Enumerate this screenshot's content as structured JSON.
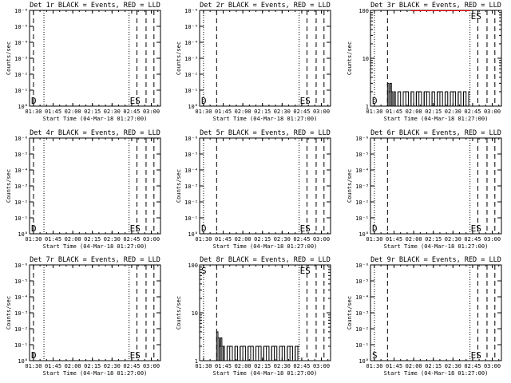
{
  "figure": {
    "background": "#ffffff",
    "ink_color": "#000000",
    "lld_color": "#ff0000"
  },
  "chart_data": [
    {
      "type": "line",
      "title": "Det 1r BLACK = Events, RED = LLD",
      "xlabel": "Start Time (04-Mar-18 01:27:00)",
      "ylabel": "Counts/sec",
      "x_ticks": [
        "01:30",
        "01:45",
        "02:00",
        "02:15",
        "02:30",
        "02:45",
        "03:00"
      ],
      "xlim": [
        "01:27",
        "03:07"
      ],
      "y_scale": "log",
      "y_ticks": [
        "10°",
        "10⁻¹",
        "10⁻²",
        "10⁻³",
        "10⁻⁴",
        "10⁻⁵",
        "10⁻⁶"
      ],
      "y_tick_values": [
        1,
        0.1,
        0.01,
        0.001,
        0.0001,
        1e-05,
        1e-06
      ],
      "ylim": [
        1,
        1e-06
      ],
      "ylim_mode": "inverted-empty",
      "marker_left": "D",
      "marker_right": "ES",
      "dotted_lines": [
        "01:38",
        "02:43"
      ],
      "dashed_lines": [
        "01:30",
        "02:49",
        "02:56",
        "03:02"
      ],
      "series": []
    },
    {
      "type": "line",
      "title": "Det 2r BLACK = Events, RED = LLD",
      "xlabel": "Start Time (04-Mar-18 01:27:00)",
      "ylabel": "Counts/sec",
      "x_ticks": [
        "01:30",
        "01:45",
        "02:00",
        "02:15",
        "02:30",
        "02:45",
        "03:00"
      ],
      "xlim": [
        "01:27",
        "03:07"
      ],
      "y_scale": "log",
      "y_ticks": [
        "10°",
        "10⁻¹",
        "10⁻²",
        "10⁻³",
        "10⁻⁴",
        "10⁻⁵",
        "10⁻⁶"
      ],
      "y_tick_values": [
        1,
        0.1,
        0.01,
        0.001,
        0.0001,
        1e-05,
        1e-06
      ],
      "ylim": [
        1,
        1e-06
      ],
      "ylim_mode": "inverted-empty",
      "marker_left": "D",
      "marker_right": "ES",
      "dotted_lines": [
        "01:30",
        "02:43"
      ],
      "dashed_lines": [
        "01:40",
        "02:49",
        "02:56",
        "03:02"
      ],
      "series": []
    },
    {
      "type": "line",
      "title": "Det 3r BLACK = Events, RED = LLD",
      "xlabel": "Start Time (04-Mar-18 01:27:00)",
      "ylabel": "Counts/sec",
      "x_ticks": [
        "01:30",
        "01:45",
        "02:00",
        "02:15",
        "02:30",
        "02:45",
        "03:00"
      ],
      "xlim": [
        "01:27",
        "03:07"
      ],
      "y_scale": "log",
      "y_ticks": [
        "100",
        "10",
        "1"
      ],
      "y_tick_values": [
        100,
        10,
        1
      ],
      "ylim": [
        1,
        100
      ],
      "marker_left": "D",
      "marker_right": "ES",
      "dotted_lines": [
        "01:30",
        "02:43"
      ],
      "dashed_lines": [
        "01:40",
        "02:49",
        "02:56",
        "03:02"
      ],
      "series": [
        {
          "name": "Events",
          "color": "#000000",
          "x": [
            "01:40",
            "01:41",
            "01:42",
            "01:43",
            "01:44",
            "01:45",
            "01:46",
            "01:48",
            "01:50",
            "01:52",
            "01:54",
            "01:56",
            "01:58",
            "02:00",
            "02:02",
            "02:04",
            "02:06",
            "02:08",
            "02:10",
            "02:12",
            "02:14",
            "02:16",
            "02:18",
            "02:20",
            "02:22",
            "02:24",
            "02:26",
            "02:28",
            "02:30",
            "02:32",
            "02:34",
            "02:36",
            "02:38",
            "02:40",
            "02:42"
          ],
          "y": [
            3,
            2,
            3,
            2,
            1,
            2,
            1,
            2,
            1,
            2,
            2,
            1,
            2,
            1,
            2,
            2,
            1,
            2,
            2,
            1,
            2,
            1,
            2,
            2,
            1,
            2,
            1,
            2,
            2,
            1,
            2,
            1,
            2,
            1,
            2
          ]
        },
        {
          "name": "LLD",
          "color": "#ff0000",
          "x": [
            "01:58",
            "02:05",
            "02:12",
            "02:20",
            "02:28",
            "02:36",
            "02:42"
          ],
          "y": [
            100,
            100,
            100,
            100,
            100,
            100,
            100
          ]
        }
      ]
    },
    {
      "type": "line",
      "title": "Det 4r BLACK = Events, RED = LLD",
      "xlabel": "Start Time (04-Mar-18 01:27:00)",
      "ylabel": "Counts/sec",
      "x_ticks": [
        "01:30",
        "01:45",
        "02:00",
        "02:15",
        "02:30",
        "02:45",
        "03:00"
      ],
      "xlim": [
        "01:27",
        "03:07"
      ],
      "y_scale": "log",
      "y_ticks": [
        "10°",
        "10⁻¹",
        "10⁻²",
        "10⁻³",
        "10⁻⁴",
        "10⁻⁵",
        "10⁻⁶"
      ],
      "y_tick_values": [
        1,
        0.1,
        0.01,
        0.001,
        0.0001,
        1e-05,
        1e-06
      ],
      "ylim": [
        1,
        1e-06
      ],
      "ylim_mode": "inverted-empty",
      "marker_left": "D",
      "marker_right": "ES",
      "dotted_lines": [
        "01:38",
        "02:43"
      ],
      "dashed_lines": [
        "01:30",
        "02:49",
        "02:56",
        "03:02"
      ],
      "series": []
    },
    {
      "type": "line",
      "title": "Det 5r BLACK = Events, RED = LLD",
      "xlabel": "Start Time (04-Mar-18 01:27:00)",
      "ylabel": "Counts/sec",
      "x_ticks": [
        "01:30",
        "01:45",
        "02:00",
        "02:15",
        "02:30",
        "02:45",
        "03:00"
      ],
      "xlim": [
        "01:27",
        "03:07"
      ],
      "y_scale": "log",
      "y_ticks": [
        "10°",
        "10⁻¹",
        "10⁻²",
        "10⁻³",
        "10⁻⁴",
        "10⁻⁵",
        "10⁻⁶"
      ],
      "y_tick_values": [
        1,
        0.1,
        0.01,
        0.001,
        0.0001,
        1e-05,
        1e-06
      ],
      "ylim": [
        1,
        1e-06
      ],
      "ylim_mode": "inverted-empty",
      "marker_left": "D",
      "marker_right": "ES",
      "dotted_lines": [
        "01:30",
        "02:43"
      ],
      "dashed_lines": [
        "01:40",
        "02:49",
        "02:56",
        "03:02"
      ],
      "series": []
    },
    {
      "type": "line",
      "title": "Det 6r BLACK = Events, RED = LLD",
      "xlabel": "Start Time (04-Mar-18 01:27:00)",
      "ylabel": "Counts/sec",
      "x_ticks": [
        "01:30",
        "01:45",
        "02:00",
        "02:15",
        "02:30",
        "02:45",
        "03:00"
      ],
      "xlim": [
        "01:27",
        "03:07"
      ],
      "y_scale": "log",
      "y_ticks": [
        "10°",
        "10⁻¹",
        "10⁻²",
        "10⁻³",
        "10⁻⁴",
        "10⁻⁵",
        "10⁻⁶"
      ],
      "y_tick_values": [
        1,
        0.1,
        0.01,
        0.001,
        0.0001,
        1e-05,
        1e-06
      ],
      "ylim": [
        1,
        1e-06
      ],
      "ylim_mode": "inverted-empty",
      "marker_left": "D",
      "marker_right": "ES",
      "dotted_lines": [
        "01:30",
        "02:43"
      ],
      "dashed_lines": [
        "01:40",
        "02:49",
        "02:56",
        "03:02"
      ],
      "series": []
    },
    {
      "type": "line",
      "title": "Det 7r BLACK = Events, RED = LLD",
      "xlabel": "Start Time (04-Mar-18 01:27:00)",
      "ylabel": "Counts/sec",
      "x_ticks": [
        "01:30",
        "01:45",
        "02:00",
        "02:15",
        "02:30",
        "02:45",
        "03:00"
      ],
      "xlim": [
        "01:27",
        "03:07"
      ],
      "y_scale": "log",
      "y_ticks": [
        "10°",
        "10⁻¹",
        "10⁻²",
        "10⁻³",
        "10⁻⁴",
        "10⁻⁵",
        "10⁻⁶"
      ],
      "y_tick_values": [
        1,
        0.1,
        0.01,
        0.001,
        0.0001,
        1e-05,
        1e-06
      ],
      "ylim": [
        1,
        1e-06
      ],
      "ylim_mode": "inverted-empty",
      "marker_left": "D",
      "marker_right": "ES",
      "dotted_lines": [
        "01:38",
        "02:43"
      ],
      "dashed_lines": [
        "01:30",
        "02:49",
        "02:56",
        "03:02"
      ],
      "series": []
    },
    {
      "type": "line",
      "title": "Det 8r BLACK = Events, RED = LLD",
      "xlabel": "Start Time (04-Mar-18 01:27:00)",
      "ylabel": "Counts/sec",
      "x_ticks": [
        "01:30",
        "01:45",
        "02:00",
        "02:15",
        "02:30",
        "02:45",
        "03:00"
      ],
      "xlim": [
        "01:27",
        "03:07"
      ],
      "y_scale": "log",
      "y_ticks": [
        "100",
        "10",
        "1"
      ],
      "y_tick_values": [
        100,
        10,
        1
      ],
      "ylim": [
        1,
        100
      ],
      "marker_left": "S",
      "marker_right": "ES",
      "dotted_lines": [
        "01:30",
        "02:43"
      ],
      "dashed_lines": [
        "01:40",
        "02:49",
        "02:56",
        "03:02"
      ],
      "series": [
        {
          "name": "Events",
          "color": "#000000",
          "x": [
            "01:40",
            "01:41",
            "01:42",
            "01:43",
            "01:44",
            "01:45",
            "01:46",
            "01:48",
            "01:50",
            "01:52",
            "01:54",
            "01:56",
            "01:58",
            "02:00",
            "02:02",
            "02:04",
            "02:06",
            "02:08",
            "02:10",
            "02:12",
            "02:14",
            "02:16",
            "02:18",
            "02:20",
            "02:22",
            "02:24",
            "02:26",
            "02:28",
            "02:30",
            "02:32",
            "02:34",
            "02:36",
            "02:38",
            "02:40",
            "02:42"
          ],
          "y": [
            4,
            3,
            2,
            3,
            2,
            2,
            1,
            2,
            2,
            1,
            2,
            1,
            2,
            2,
            1,
            2,
            2,
            1,
            2,
            2,
            1,
            2,
            2,
            1,
            2,
            2,
            1,
            2,
            2,
            1,
            2,
            2,
            1,
            2,
            2
          ]
        }
      ]
    },
    {
      "type": "line",
      "title": "Det 9r BLACK = Events, RED = LLD",
      "xlabel": "Start Time (04-Mar-18 01:27:00)",
      "ylabel": "Counts/sec",
      "x_ticks": [
        "01:30",
        "01:45",
        "02:00",
        "02:15",
        "02:30",
        "02:45",
        "03:00"
      ],
      "xlim": [
        "01:27",
        "03:07"
      ],
      "y_scale": "log",
      "y_ticks": [
        "10°",
        "10⁻¹",
        "10⁻²",
        "10⁻³",
        "10⁻⁴",
        "10⁻⁵",
        "10⁻⁶"
      ],
      "y_tick_values": [
        1,
        0.1,
        0.01,
        0.001,
        0.0001,
        1e-05,
        1e-06
      ],
      "ylim": [
        1,
        1e-06
      ],
      "ylim_mode": "inverted-empty",
      "marker_left": "S",
      "marker_right": "ES",
      "dotted_lines": [
        "01:30",
        "02:43"
      ],
      "dashed_lines": [
        "01:40",
        "02:49",
        "02:56",
        "03:02"
      ],
      "series": []
    }
  ]
}
